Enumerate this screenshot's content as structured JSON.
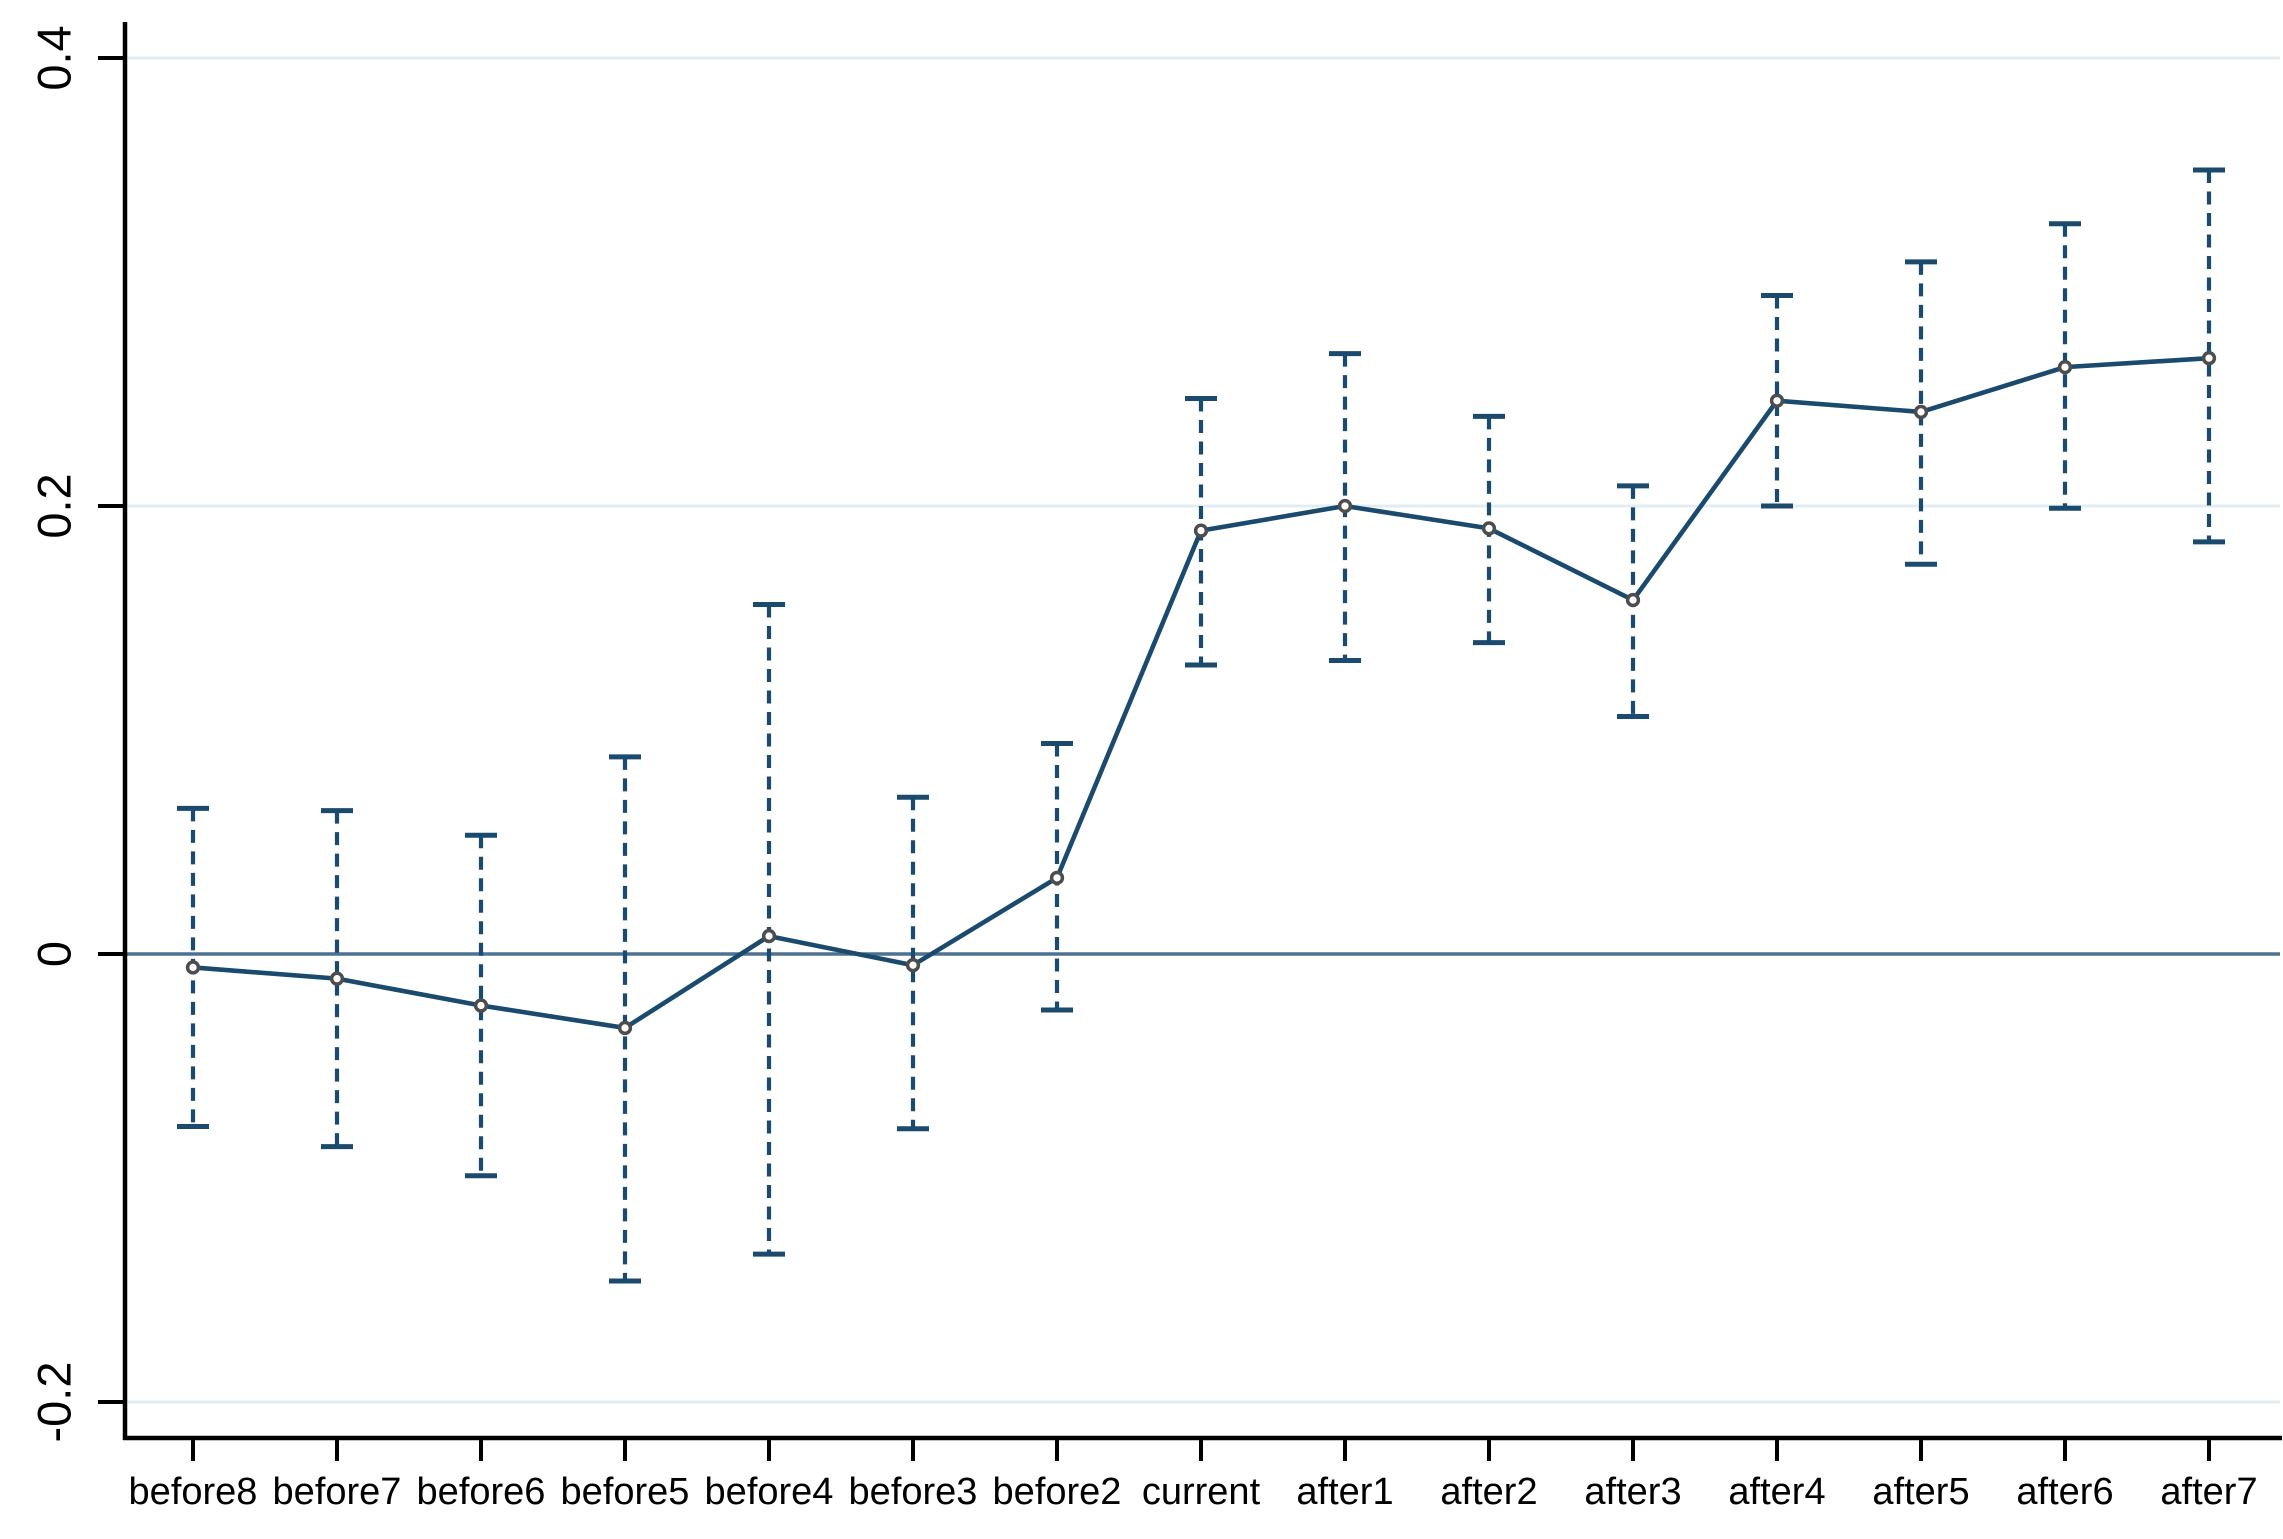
{
  "chart_data": {
    "type": "line",
    "title": "",
    "xlabel": "",
    "ylabel": "",
    "categories": [
      "before8",
      "before7",
      "before6",
      "before5",
      "before4",
      "before3",
      "before2",
      "current",
      "after1",
      "after2",
      "after3",
      "after4",
      "after5",
      "after6",
      "after7"
    ],
    "series": [
      {
        "name": "point-estimate",
        "values": [
          -0.006,
          -0.011,
          -0.023,
          -0.033,
          0.008,
          -0.005,
          0.034,
          0.189,
          0.2,
          0.19,
          0.158,
          0.247,
          0.242,
          0.262,
          0.266
        ]
      }
    ],
    "ci_low": [
      -0.077,
      -0.086,
      -0.099,
      -0.146,
      -0.134,
      -0.078,
      -0.025,
      0.129,
      0.131,
      0.139,
      0.106,
      0.2,
      0.174,
      0.199,
      0.184
    ],
    "ci_high": [
      0.065,
      0.064,
      0.053,
      0.088,
      0.156,
      0.07,
      0.094,
      0.248,
      0.268,
      0.24,
      0.209,
      0.294,
      0.309,
      0.326,
      0.35
    ],
    "yticks": [
      -0.2,
      0,
      0.2,
      0.4
    ],
    "ytick_labels": [
      "-0.2",
      "0",
      "0.2",
      "0.4"
    ],
    "ylim": [
      -0.216,
      0.417
    ],
    "grid": true,
    "zero_line": true,
    "legend": "none",
    "marker": "hollow-circle",
    "ci_style": "dashed-with-caps",
    "colors": {
      "line": "#1b4a6f",
      "ci": "#1b4a6f",
      "zero_line": "#4d7190",
      "grid": "#e2edf3",
      "axis": "#000000",
      "tick_label": "#000000",
      "marker_edge": "#4d4d4d",
      "marker_fill": "#ffffff",
      "background": "#ffffff"
    }
  }
}
